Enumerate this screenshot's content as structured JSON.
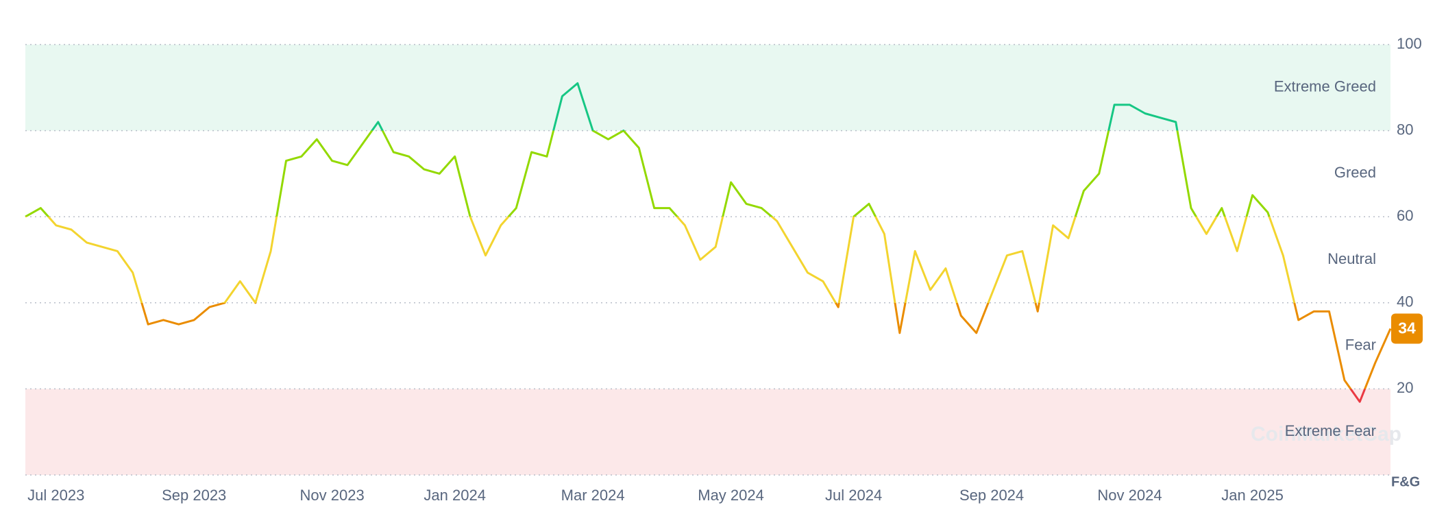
{
  "chart_data": {
    "type": "line",
    "categories": [
      null,
      null,
      "Jul 2023",
      null,
      null,
      null,
      null,
      null,
      null,
      null,
      null,
      "Sep 2023",
      null,
      null,
      null,
      null,
      null,
      null,
      null,
      null,
      "Nov 2023",
      null,
      null,
      null,
      null,
      null,
      null,
      null,
      "Jan 2024",
      null,
      null,
      null,
      null,
      null,
      null,
      null,
      null,
      "Mar 2024",
      null,
      null,
      null,
      null,
      null,
      null,
      null,
      null,
      "May 2024",
      null,
      null,
      null,
      null,
      null,
      null,
      null,
      "Jul 2024",
      null,
      null,
      null,
      null,
      null,
      null,
      null,
      null,
      "Sep 2024",
      null,
      null,
      null,
      null,
      null,
      null,
      null,
      null,
      "Nov 2024",
      null,
      null,
      null,
      null,
      null,
      null,
      null,
      "Jan 2025",
      null,
      null,
      null,
      null,
      null,
      null,
      null,
      null,
      null
    ],
    "series": [
      {
        "name": "F&G",
        "values": [
          60,
          62,
          58,
          57,
          54,
          53,
          52,
          47,
          35,
          36,
          35,
          36,
          39,
          40,
          45,
          40,
          52,
          73,
          74,
          78,
          73,
          72,
          77,
          82,
          75,
          74,
          71,
          70,
          74,
          60,
          51,
          58,
          62,
          75,
          74,
          88,
          91,
          80,
          78,
          80,
          76,
          62,
          62,
          58,
          50,
          53,
          68,
          63,
          62,
          59,
          53,
          47,
          45,
          39,
          60,
          63,
          56,
          33,
          52,
          43,
          48,
          37,
          33,
          42,
          51,
          52,
          38,
          58,
          55,
          66,
          70,
          86,
          86,
          84,
          83,
          82,
          62,
          56,
          62,
          52,
          65,
          61,
          51,
          36,
          38,
          38,
          22,
          17,
          26,
          34
        ]
      }
    ],
    "ylim": [
      0,
      100
    ],
    "yticks": [
      20,
      40,
      60,
      80,
      100
    ],
    "y_axis_label": "F&G",
    "grid": true,
    "zones": [
      {
        "label": "Extreme Greed",
        "from": 80,
        "to": 100,
        "color": "#16c784",
        "background": "#e8f8f1"
      },
      {
        "label": "Greed",
        "from": 60,
        "to": 80,
        "color": "#93d900"
      },
      {
        "label": "Neutral",
        "from": 40,
        "to": 60,
        "color": "#f3d42f"
      },
      {
        "label": "Fear",
        "from": 20,
        "to": 40,
        "color": "#ea8c00"
      },
      {
        "label": "Extreme Fear",
        "from": 0,
        "to": 20,
        "color": "#ea3943",
        "background": "#fce8e9"
      }
    ],
    "watermark": "CoinMarketCap"
  }
}
